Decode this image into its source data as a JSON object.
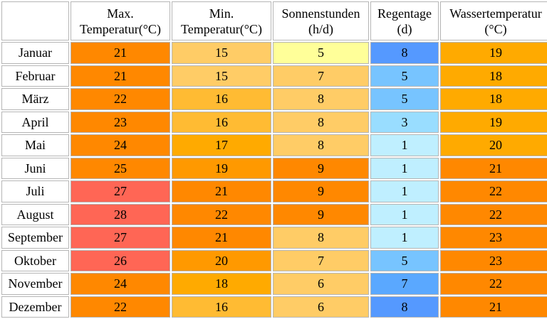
{
  "chart_data": {
    "type": "table",
    "columns": [
      {
        "line1": "Max.",
        "line2": "Temperatur(°C)"
      },
      {
        "line1": "Min.",
        "line2": "Temperatur(°C)"
      },
      {
        "line1": "Sonnenstunden",
        "line2": "(h/d)"
      },
      {
        "line1": "Regentage",
        "line2": "(d)"
      },
      {
        "line1": "Wassertemperatur",
        "line2": "(°C)"
      }
    ],
    "rows": [
      {
        "month": "Januar",
        "values": [
          21,
          15,
          5,
          8,
          19
        ]
      },
      {
        "month": "Februar",
        "values": [
          21,
          15,
          7,
          5,
          18
        ]
      },
      {
        "month": "März",
        "values": [
          22,
          16,
          8,
          5,
          18
        ]
      },
      {
        "month": "April",
        "values": [
          23,
          16,
          8,
          3,
          19
        ]
      },
      {
        "month": "Mai",
        "values": [
          24,
          17,
          8,
          1,
          20
        ]
      },
      {
        "month": "Juni",
        "values": [
          25,
          19,
          9,
          1,
          21
        ]
      },
      {
        "month": "Juli",
        "values": [
          27,
          21,
          9,
          1,
          22
        ]
      },
      {
        "month": "August",
        "values": [
          28,
          22,
          9,
          1,
          22
        ]
      },
      {
        "month": "September",
        "values": [
          27,
          21,
          8,
          1,
          23
        ]
      },
      {
        "month": "Oktober",
        "values": [
          26,
          20,
          7,
          5,
          23
        ]
      },
      {
        "month": "November",
        "values": [
          24,
          18,
          6,
          7,
          22
        ]
      },
      {
        "month": "Dezember",
        "values": [
          22,
          16,
          6,
          8,
          21
        ]
      }
    ]
  },
  "colors": {
    "temp": {
      "15": "#ffcc66",
      "16": "#ffbb33",
      "17": "#ffaa00",
      "18": "#ffaa00",
      "19": "#ff9900",
      "20": "#ff9900",
      "21": "#ff8800",
      "22": "#ff8800",
      "23": "#ff8800",
      "24": "#ff8800",
      "25": "#ff8800",
      "26": "#ff6655",
      "27": "#ff6655",
      "28": "#ff6655"
    },
    "sun": {
      "5": "#ffff99",
      "6": "#ffcc66",
      "7": "#ffcc66",
      "8": "#ffcc66",
      "9": "#ff8800"
    },
    "rain": {
      "1": "#bfefff",
      "3": "#99ddff",
      "5": "#77c4ff",
      "7": "#5aa8ff",
      "8": "#5599ff"
    },
    "water": {
      "18": "#ffaa00",
      "19": "#ffaa00",
      "20": "#ffaa00",
      "21": "#ff8800",
      "22": "#ff8800",
      "23": "#ff8800"
    }
  }
}
